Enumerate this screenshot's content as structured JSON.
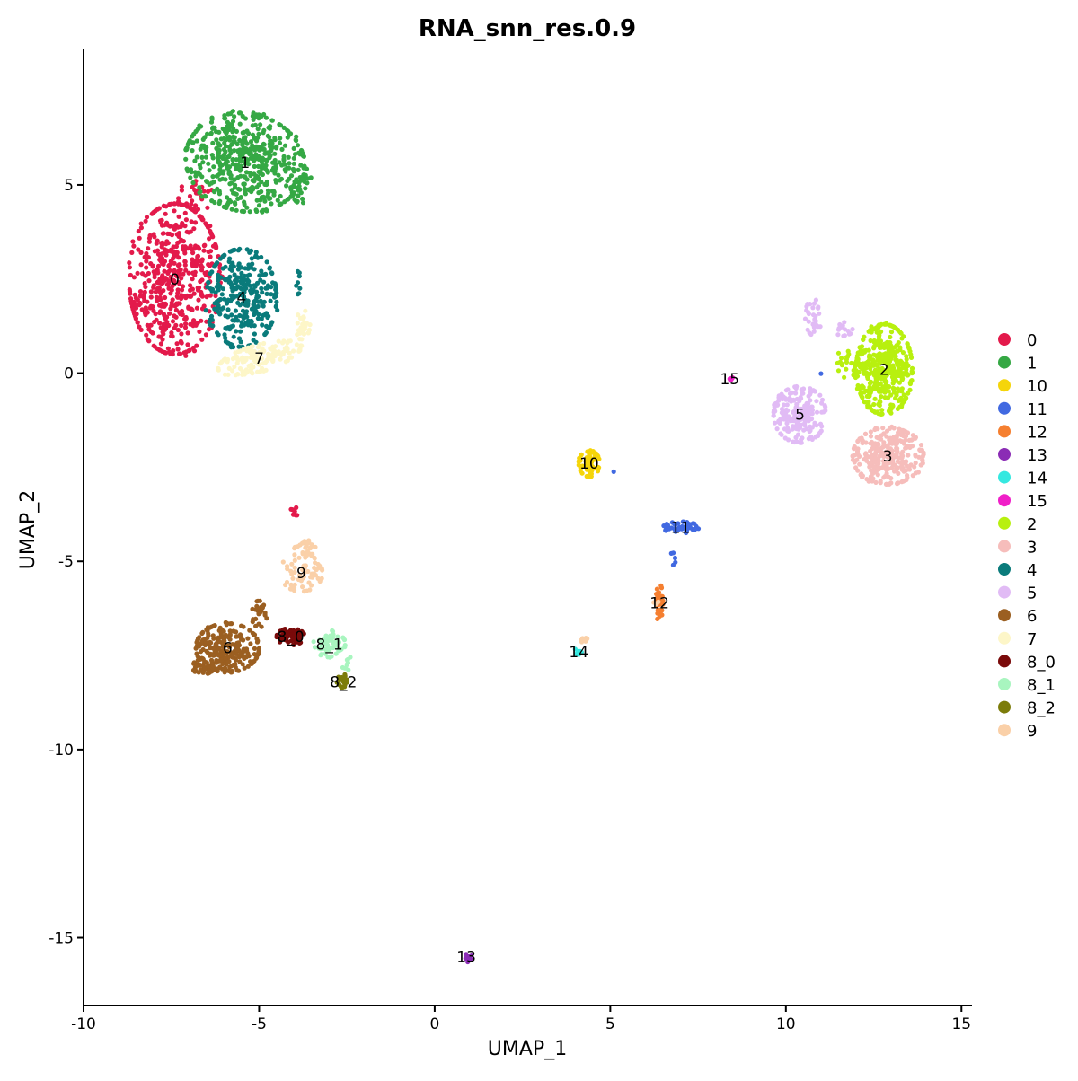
{
  "chart_data": {
    "type": "scatter",
    "title": "RNA_snn_res.0.9",
    "xlabel": "UMAP_1",
    "ylabel": "UMAP_2",
    "xlim": [
      -10,
      15.3
    ],
    "ylim": [
      -16.8,
      8.6
    ],
    "x_ticks": [
      -10,
      -5,
      0,
      5,
      10,
      15
    ],
    "y_ticks": [
      5,
      0,
      -5,
      -10,
      -15
    ],
    "x_tick_labels": [
      "-10",
      "-5",
      "0",
      "5",
      "10",
      "15"
    ],
    "y_tick_labels": [
      "5",
      "0",
      "-5",
      "-10",
      "-15"
    ],
    "grid": false,
    "legend_position": "right",
    "series": [
      {
        "name": "0",
        "color": "#E31A4B",
        "label_pos": [
          -7.4,
          2.5
        ],
        "regions": [
          [
            -7.4,
            2.5,
            1.3,
            2.0,
            0,
            520
          ],
          [
            -6.8,
            4.6,
            0.5,
            0.6,
            0,
            30
          ],
          [
            -4.0,
            -3.7,
            0.1,
            0.2,
            0,
            8
          ]
        ]
      },
      {
        "name": "1",
        "color": "#35A844",
        "label_pos": [
          -5.4,
          5.6
        ],
        "regions": [
          [
            -5.4,
            5.6,
            1.7,
            1.3,
            -0.15,
            520
          ],
          [
            -3.8,
            5.0,
            0.3,
            0.5,
            0,
            30
          ]
        ]
      },
      {
        "name": "10",
        "color": "#F5D50A",
        "label_pos": [
          4.4,
          -2.4
        ],
        "regions": [
          [
            4.4,
            -2.4,
            0.3,
            0.35,
            0,
            70
          ]
        ]
      },
      {
        "name": "11",
        "color": "#4169E1",
        "label_pos": [
          7.0,
          -4.1
        ],
        "regions": [
          [
            7.0,
            -4.1,
            0.5,
            0.15,
            0,
            45
          ],
          [
            6.8,
            -4.9,
            0.08,
            0.2,
            0,
            5
          ],
          [
            11.0,
            0.0,
            0.02,
            0.02,
            0,
            1
          ],
          [
            5.1,
            -2.6,
            0.05,
            0.05,
            0,
            1
          ]
        ]
      },
      {
        "name": "12",
        "color": "#F57F30",
        "label_pos": [
          6.4,
          -6.1
        ],
        "regions": [
          [
            6.4,
            -6.1,
            0.1,
            0.5,
            0,
            40
          ]
        ]
      },
      {
        "name": "13",
        "color": "#8B2CB5",
        "label_pos": [
          0.9,
          -15.5
        ],
        "regions": [
          [
            0.9,
            -15.5,
            0.15,
            0.15,
            0,
            12
          ]
        ]
      },
      {
        "name": "14",
        "color": "#35E8E0",
        "label_pos": [
          4.1,
          -7.4
        ],
        "regions": [
          [
            4.1,
            -7.4,
            0.12,
            0.12,
            0,
            8
          ]
        ]
      },
      {
        "name": "15",
        "color": "#F01FC8",
        "label_pos": [
          8.4,
          -0.15
        ],
        "regions": [
          [
            8.4,
            -0.15,
            0.1,
            0.07,
            0,
            6
          ]
        ]
      },
      {
        "name": "2",
        "color": "#B8F00F",
        "label_pos": [
          12.8,
          0.1
        ],
        "regions": [
          [
            12.8,
            0.1,
            0.8,
            1.2,
            0,
            420
          ],
          [
            11.8,
            0.2,
            0.4,
            0.5,
            0,
            30
          ]
        ]
      },
      {
        "name": "3",
        "color": "#F6BDBB",
        "label_pos": [
          12.9,
          -2.2
        ],
        "regions": [
          [
            12.9,
            -2.2,
            1.0,
            0.75,
            0,
            300
          ]
        ]
      },
      {
        "name": "4",
        "color": "#0A7B7B",
        "label_pos": [
          -5.5,
          2.0
        ],
        "regions": [
          [
            -5.5,
            2.0,
            1.0,
            1.3,
            0,
            300
          ],
          [
            -3.9,
            2.4,
            0.1,
            0.3,
            0,
            8
          ]
        ]
      },
      {
        "name": "5",
        "color": "#E1BBF5",
        "label_pos": [
          10.4,
          -1.1
        ],
        "regions": [
          [
            10.4,
            -1.1,
            0.75,
            0.75,
            0,
            200
          ],
          [
            10.8,
            1.5,
            0.25,
            0.5,
            0,
            30
          ],
          [
            11.6,
            1.2,
            0.3,
            0.25,
            0,
            15
          ]
        ]
      },
      {
        "name": "6",
        "color": "#9B5F21",
        "label_pos": [
          -5.9,
          -7.3
        ],
        "regions": [
          [
            -5.9,
            -7.3,
            0.9,
            0.65,
            0,
            250
          ],
          [
            -6.6,
            -7.8,
            0.3,
            0.2,
            0,
            40
          ],
          [
            -5.0,
            -6.4,
            0.25,
            0.35,
            0,
            25
          ]
        ]
      },
      {
        "name": "7",
        "color": "#FDF6C8",
        "label_pos": [
          -5.0,
          0.4
        ],
        "regions": [
          [
            -5.0,
            0.4,
            1.2,
            0.35,
            0.25,
            150
          ],
          [
            -3.8,
            1.3,
            0.25,
            0.4,
            0,
            30
          ]
        ]
      },
      {
        "name": "8_0",
        "color": "#7A0A0A",
        "label_pos": [
          -4.1,
          -7.0
        ],
        "regions": [
          [
            -4.1,
            -7.0,
            0.4,
            0.22,
            0,
            80
          ]
        ]
      },
      {
        "name": "8_1",
        "color": "#A8F5BF",
        "label_pos": [
          -3.0,
          -7.2
        ],
        "regions": [
          [
            -3.0,
            -7.2,
            0.45,
            0.35,
            0,
            60
          ],
          [
            -2.5,
            -7.7,
            0.15,
            0.2,
            0,
            10
          ]
        ]
      },
      {
        "name": "8_2",
        "color": "#7C7C0A",
        "label_pos": [
          -2.6,
          -8.2
        ],
        "regions": [
          [
            -2.6,
            -8.2,
            0.18,
            0.2,
            0,
            20
          ]
        ]
      },
      {
        "name": "9",
        "color": "#FAD0A8",
        "label_pos": [
          -3.8,
          -5.3
        ],
        "regions": [
          [
            -3.8,
            -5.3,
            0.6,
            0.5,
            0,
            60
          ],
          [
            -3.7,
            -4.6,
            0.3,
            0.3,
            0,
            25
          ],
          [
            4.2,
            -7.1,
            0.15,
            0.15,
            0,
            8
          ],
          [
            6.3,
            -6.1,
            0.1,
            0.1,
            0,
            4
          ]
        ]
      }
    ]
  }
}
